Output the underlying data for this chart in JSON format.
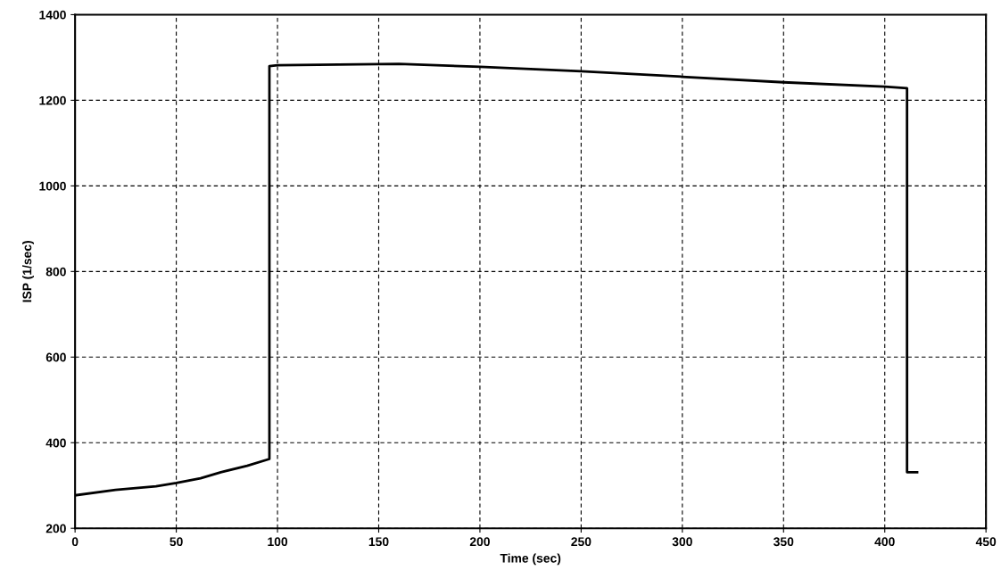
{
  "chart_data": {
    "type": "line",
    "xlabel": "Time (sec)",
    "ylabel": "ISP (1/sec)",
    "series": [
      {
        "color": "#000000",
        "x": [
          0,
          20,
          40,
          50,
          62,
          72,
          85,
          96,
          96,
          100,
          160,
          200,
          250,
          300,
          350,
          400,
          411,
          411,
          416
        ],
        "values": [
          277,
          290,
          298,
          306,
          317,
          331,
          346,
          362,
          1280,
          1282,
          1285,
          1278,
          1268,
          1255,
          1242,
          1232,
          1228,
          331,
          331
        ]
      }
    ],
    "xlim": [
      0,
      450
    ],
    "xticks": [
      0,
      50,
      100,
      150,
      200,
      250,
      300,
      350,
      400,
      450
    ],
    "ylim": [
      200,
      1400
    ],
    "yticks": [
      200,
      400,
      600,
      800,
      1000,
      1200,
      1400
    ],
    "grid": true,
    "line_style": "solid",
    "marker": "none"
  }
}
